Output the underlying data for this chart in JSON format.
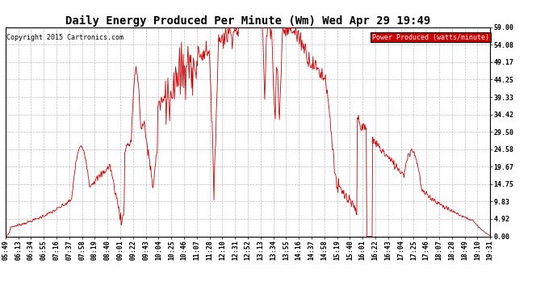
{
  "title": "Daily Energy Produced Per Minute (Wm) Wed Apr 29 19:49",
  "copyright": "Copyright 2015 Cartronics.com",
  "legend_label": "Power Produced (watts/minute)",
  "legend_bg": "#cc0000",
  "legend_text_color": "#ffffff",
  "line_color": "#cc0000",
  "background_color": "#ffffff",
  "grid_color": "#bbbbbb",
  "ymin": 0.0,
  "ymax": 59.0,
  "yticks": [
    0.0,
    4.92,
    9.83,
    14.75,
    19.67,
    24.58,
    29.5,
    34.42,
    39.33,
    44.25,
    49.17,
    54.08,
    59.0
  ],
  "ytick_labels": [
    "0.00",
    "4.92",
    "9.83",
    "14.75",
    "19.67",
    "24.58",
    "29.50",
    "34.42",
    "39.33",
    "44.25",
    "49.17",
    "54.08",
    "59.00"
  ],
  "xtick_labels": [
    "05:49",
    "06:13",
    "06:34",
    "06:55",
    "07:16",
    "07:37",
    "07:58",
    "08:19",
    "08:40",
    "09:01",
    "09:22",
    "09:43",
    "10:04",
    "10:25",
    "10:46",
    "11:07",
    "11:28",
    "12:10",
    "12:31",
    "12:52",
    "13:13",
    "13:34",
    "13:55",
    "14:16",
    "14:37",
    "14:58",
    "15:19",
    "15:40",
    "16:01",
    "16:22",
    "16:43",
    "17:04",
    "17:25",
    "17:46",
    "18:07",
    "18:28",
    "18:49",
    "19:10",
    "19:31"
  ],
  "title_fontsize": 10,
  "axis_fontsize": 6,
  "copyright_fontsize": 6
}
